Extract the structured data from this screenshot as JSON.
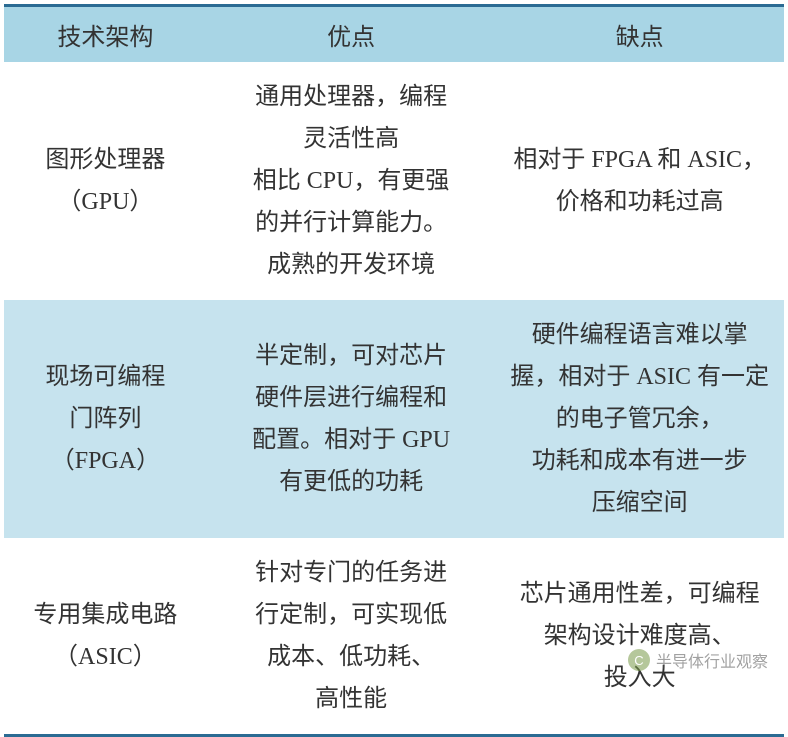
{
  "table": {
    "type": "table",
    "header_bg": "#a8d5e5",
    "row_alt_bg": "#c6e3ee",
    "row_bg": "#ffffff",
    "border_color": "#2b6b93",
    "text_color": "#333333",
    "font_size": 24,
    "columns": [
      {
        "label": "技术架构",
        "width": "26%"
      },
      {
        "label": "优点",
        "width": "37%"
      },
      {
        "label": "缺点",
        "width": "37%"
      }
    ],
    "rows": [
      {
        "arch": "图形处理器\n（GPU）",
        "pros": "通用处理器，编程\n灵活性高\n相比 CPU，有更强\n的并行计算能力。\n成熟的开发环境",
        "cons": "相对于 FPGA 和 ASIC，\n价格和功耗过高"
      },
      {
        "arch": "现场可编程\n门阵列\n（FPGA）",
        "pros": "半定制，可对芯片\n硬件层进行编程和\n配置。相对于 GPU\n有更低的功耗",
        "cons": "硬件编程语言难以掌\n握，相对于 ASIC 有一定\n的电子管冗余，\n功耗和成本有进一步\n压缩空间"
      },
      {
        "arch": "专用集成电路\n（ASIC）",
        "pros": "针对专门的任务进\n行定制，可实现低\n成本、低功耗、\n高性能",
        "cons": "芯片通用性差，可编程\n架构设计难度高、\n投入大"
      }
    ]
  },
  "watermark": {
    "icon_text": "C",
    "text": "半导体行业观察"
  }
}
